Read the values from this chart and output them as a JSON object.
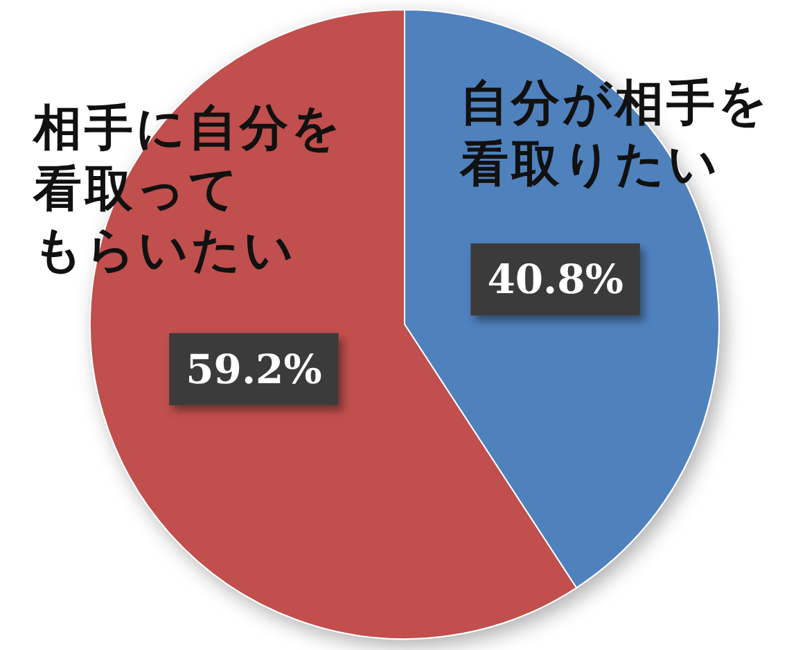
{
  "chart_data": {
    "type": "pie",
    "categories": [
      "自分が相手を看取りたい",
      "相手に自分を看取ってもらいたい"
    ],
    "values": [
      40.8,
      59.2
    ],
    "value_labels": [
      "40.8%",
      "59.2%"
    ],
    "colors": [
      "#4f81bd",
      "#c0504d"
    ]
  }
}
